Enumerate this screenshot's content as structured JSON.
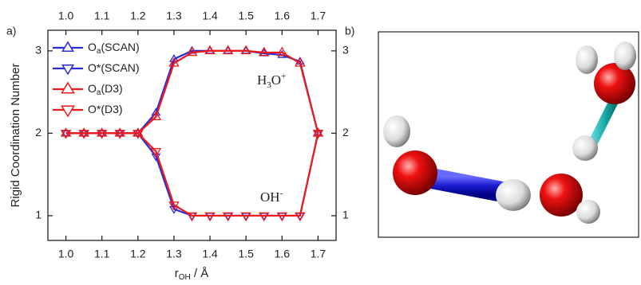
{
  "chart_data": {
    "type": "line",
    "panel_a": "a)",
    "panel_b": "b)",
    "y_label": "Rigid Coordination Number",
    "x_label": {
      "main": "r",
      "sub": "OH",
      "rest": " / Å"
    },
    "annotations": [
      {
        "main": "H",
        "sub": "3",
        "mid": "O",
        "sup": "+"
      },
      {
        "main": "OH",
        "sup": "-"
      }
    ],
    "x": [
      1.0,
      1.05,
      1.1,
      1.15,
      1.2,
      1.25,
      1.3,
      1.35,
      1.4,
      1.45,
      1.5,
      1.55,
      1.6,
      1.65,
      1.7
    ],
    "series": [
      {
        "name": "O",
        "name_sub": "a",
        "name_suffix": "(SCAN)",
        "color": "#2b2bd9",
        "marker": "up",
        "values": [
          2,
          2,
          2,
          2,
          2,
          2.25,
          2.9,
          3,
          3,
          3,
          3,
          2.97,
          2.95,
          2.87,
          2
        ]
      },
      {
        "name": "O*(SCAN)",
        "color": "#2b2bd9",
        "marker": "down",
        "values": [
          2,
          2,
          2,
          2,
          2,
          1.72,
          1.08,
          1,
          1,
          1,
          1,
          1,
          1,
          1,
          2
        ]
      },
      {
        "name": "O",
        "name_sub": "a",
        "name_suffix": "(D3)",
        "color": "#ee1a1a",
        "marker": "up",
        "values": [
          2,
          2,
          2,
          2,
          2,
          2.2,
          2.85,
          2.98,
          3,
          3,
          3,
          2.98,
          2.98,
          2.85,
          2
        ]
      },
      {
        "name": "O*(D3)",
        "color": "#ee1a1a",
        "marker": "down",
        "values": [
          2,
          2,
          2,
          2,
          2,
          1.78,
          1.13,
          1,
          1,
          1,
          1,
          1,
          1,
          1,
          2
        ]
      }
    ],
    "xlim": [
      0.95,
      1.75
    ],
    "ylim": [
      0.7,
      3.25
    ],
    "xticks": [
      {
        "value": 1.0,
        "label": "1.0"
      },
      1.1,
      1.2,
      1.3,
      1.4,
      1.5,
      1.6,
      1.7
    ],
    "yticks": [
      1,
      2,
      3
    ]
  }
}
